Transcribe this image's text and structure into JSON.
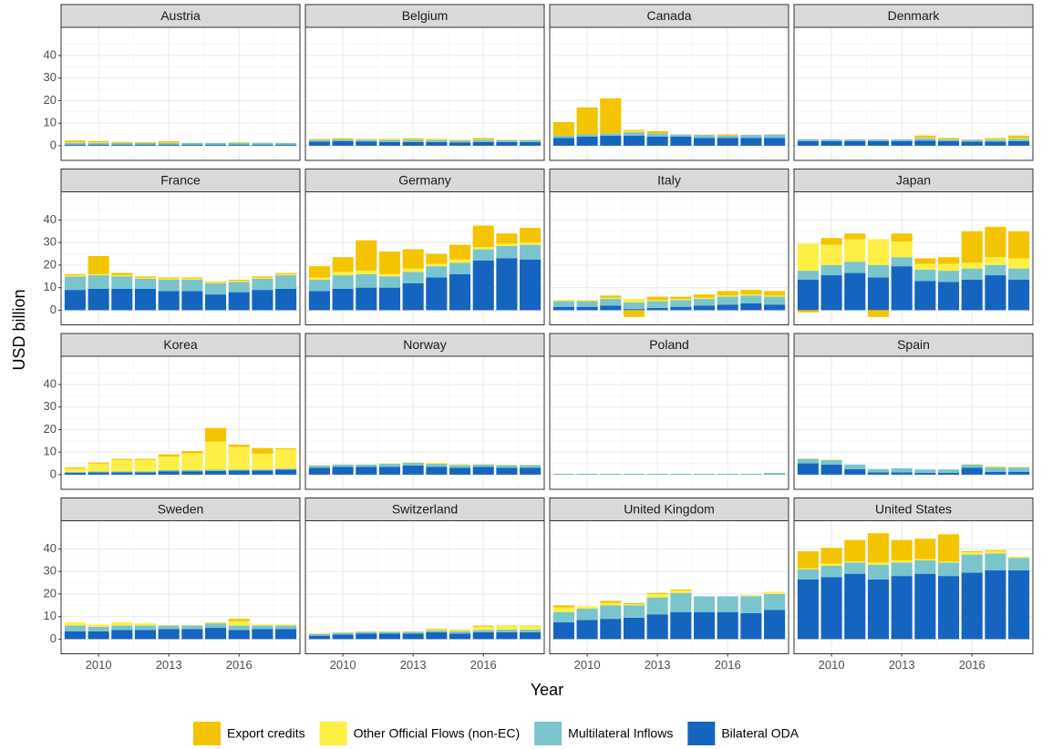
{
  "chart_data": {
    "type": "bar",
    "stacked": true,
    "x_label": "Year",
    "y_label": "USD billion",
    "x": [
      2009,
      2010,
      2011,
      2012,
      2013,
      2014,
      2015,
      2016,
      2017,
      2018
    ],
    "xlim": [
      2008.4,
      2018.6
    ],
    "xticks": [
      2010,
      2013,
      2016
    ],
    "xminor": [
      2008.5,
      2011.5,
      2014.5,
      2017.5
    ],
    "ylim": [
      -6.5,
      52.5
    ],
    "yticks": [
      0,
      10,
      20,
      30,
      40
    ],
    "yminor": [
      -5,
      5,
      15,
      25,
      35,
      45
    ],
    "grid": true,
    "legend": "bottom",
    "series": [
      {
        "name": "Export credits",
        "color": "#F5C400"
      },
      {
        "name": "Other Official Flows (non-EC)",
        "color": "#FFEE44"
      },
      {
        "name": "Multilateral Inflows",
        "color": "#7AC5CC"
      },
      {
        "name": "Bilateral ODA",
        "color": "#1565C0"
      }
    ],
    "panels": [
      {
        "title": "Austria",
        "values": [
          [
            0.8,
            0.6,
            0.4,
            0.3,
            0.6,
            0,
            0,
            0.2,
            0,
            0
          ],
          [
            0.2,
            0.2,
            0.1,
            0.1,
            0.2,
            0.1,
            0.1,
            0.1,
            0.1,
            0.1
          ],
          [
            0.8,
            0.8,
            0.7,
            0.7,
            0.7,
            0.7,
            0.7,
            0.8,
            0.8,
            0.7
          ],
          [
            0.5,
            0.5,
            0.5,
            0.5,
            0.5,
            0.5,
            0.5,
            0.5,
            0.5,
            0.5
          ]
        ]
      },
      {
        "title": "Belgium",
        "values": [
          [
            0.3,
            0.4,
            0.2,
            0.4,
            0.5,
            0.4,
            0.2,
            0.6,
            0.1,
            0.1
          ],
          [
            0.1,
            0.1,
            0.1,
            0.1,
            0.1,
            0.1,
            0.1,
            0.1,
            0.1,
            0.1
          ],
          [
            0.8,
            0.9,
            0.8,
            0.8,
            1,
            0.9,
            0.8,
            1,
            0.9,
            0.9
          ],
          [
            1.8,
            2,
            1.9,
            1.7,
            1.7,
            1.6,
            1.5,
            1.7,
            1.6,
            1.6
          ]
        ]
      },
      {
        "title": "Canada",
        "values": [
          [
            6,
            12,
            15.5,
            0.5,
            1,
            0,
            0,
            0.5,
            0,
            0
          ],
          [
            0,
            0,
            0,
            0.5,
            0,
            0,
            0.2,
            0,
            0,
            0
          ],
          [
            1,
            1,
            1,
            1.5,
            1.5,
            1,
            1.3,
            1,
            1.3,
            1.5
          ],
          [
            3.5,
            4,
            4.5,
            4.5,
            4,
            4,
            3.5,
            3.5,
            3.5,
            3.5
          ]
        ]
      },
      {
        "title": "Denmark",
        "values": [
          [
            0,
            0,
            0,
            0,
            0,
            1,
            0.5,
            0,
            0.5,
            1.2
          ],
          [
            0,
            0,
            0,
            0,
            0,
            0.3,
            0.2,
            0.2,
            0.2,
            0.3
          ],
          [
            0.9,
            0.8,
            0.8,
            0.8,
            0.8,
            1,
            0.8,
            0.8,
            0.9,
            1
          ],
          [
            2,
            2,
            2,
            2,
            2,
            2.2,
            2,
            1.8,
            1.8,
            2
          ]
        ]
      },
      {
        "title": "France",
        "values": [
          [
            0.5,
            8,
            1,
            0.5,
            0.5,
            0.5,
            0.3,
            0.5,
            0.5,
            0.5
          ],
          [
            0.5,
            0.5,
            0.5,
            0.5,
            0.5,
            0.5,
            0.5,
            0.5,
            0.5,
            0.5
          ],
          [
            6,
            6,
            5.5,
            4.5,
            5,
            5,
            5,
            4.5,
            5,
            6
          ],
          [
            9,
            9.5,
            9.5,
            9.5,
            8.5,
            8.5,
            7,
            8,
            9,
            9.5
          ]
        ]
      },
      {
        "title": "Germany",
        "values": [
          [
            5,
            6.5,
            13.5,
            10,
            8.5,
            4.5,
            6.5,
            9.5,
            4.5,
            6.5
          ],
          [
            1,
            1.5,
            1.5,
            1,
            1.5,
            1,
            1.5,
            1,
            1,
            1
          ],
          [
            5,
            6,
            6,
            5,
            5,
            5,
            5,
            5,
            5.5,
            6.5
          ],
          [
            8.5,
            9.5,
            10,
            10,
            12,
            14.5,
            16,
            22,
            23,
            22.5
          ]
        ]
      },
      {
        "title": "Italy",
        "values": [
          [
            0,
            0,
            1,
            -3,
            1.5,
            1,
            1.5,
            2,
            2,
            2
          ],
          [
            0.5,
            0.5,
            0.5,
            1.5,
            0.5,
            0.5,
            0.5,
            0.5,
            0.5,
            0.5
          ],
          [
            2.5,
            2.5,
            3,
            3,
            3,
            3,
            3,
            3.5,
            3.5,
            3.5
          ],
          [
            1.5,
            1.5,
            2,
            0.5,
            1,
            1.5,
            2,
            2.5,
            3,
            2.5
          ]
        ]
      },
      {
        "title": "Japan",
        "values": [
          [
            -1,
            3,
            2.5,
            -3,
            3.5,
            2.5,
            3,
            14,
            13.5,
            12
          ],
          [
            12,
            9,
            10,
            11.5,
            7,
            2.5,
            3,
            2.5,
            3.5,
            4.5
          ],
          [
            4,
            4.5,
            5,
            5.5,
            4,
            5,
            5,
            5,
            4.5,
            5
          ],
          [
            13.5,
            15.5,
            16.5,
            14.5,
            19.5,
            13,
            12.5,
            13.5,
            15.5,
            13.5
          ]
        ]
      },
      {
        "title": "Korea",
        "values": [
          [
            0.5,
            0.5,
            0.5,
            0.5,
            1,
            1,
            6,
            1,
            2.5,
            0.5
          ],
          [
            1.5,
            3.5,
            5,
            5,
            6,
            7.5,
            12.5,
            10,
            7,
            8.5
          ],
          [
            0.4,
            0.4,
            0.5,
            0.5,
            0.5,
            0.5,
            0.5,
            0.5,
            0.5,
            0.5
          ],
          [
            0.8,
            1,
            1,
            1,
            1.5,
            1.5,
            1.7,
            1.8,
            1.8,
            2.2
          ]
        ]
      },
      {
        "title": "Norway",
        "values": [
          [
            0,
            0,
            0,
            0,
            0,
            0,
            0,
            0,
            0,
            0
          ],
          [
            0.2,
            0.1,
            0.1,
            0.2,
            0.2,
            0.5,
            0.4,
            0.2,
            0.2,
            0.1
          ],
          [
            1,
            1,
            1,
            1.3,
            1.3,
            1.3,
            1.3,
            1,
            1.2,
            1.3
          ],
          [
            3,
            3.5,
            3.5,
            3.5,
            4,
            3.5,
            3,
            3.5,
            3,
            3
          ]
        ]
      },
      {
        "title": "Poland",
        "values": [
          [
            0,
            0,
            0,
            0,
            0,
            0,
            0,
            0,
            0,
            0
          ],
          [
            0,
            0,
            0,
            0,
            0,
            0,
            0,
            0,
            0,
            0
          ],
          [
            0.3,
            0.3,
            0.3,
            0.3,
            0.3,
            0.3,
            0.3,
            0.3,
            0.3,
            0.7
          ],
          [
            0.1,
            0.1,
            0.1,
            0.1,
            0.1,
            0.1,
            0.1,
            0.1,
            0.1,
            0.1
          ]
        ]
      },
      {
        "title": "Spain",
        "values": [
          [
            0,
            0,
            0,
            0,
            0,
            0,
            0,
            0,
            0,
            0
          ],
          [
            0.2,
            0.2,
            0,
            0,
            0,
            0,
            0,
            0.2,
            0.5,
            0.2
          ],
          [
            2,
            2,
            2,
            1.5,
            1.8,
            1.5,
            1.5,
            1.5,
            2,
            2
          ],
          [
            5,
            4.5,
            2.5,
            1,
            1,
            0.8,
            0.8,
            3,
            1.3,
            1.3
          ]
        ]
      },
      {
        "title": "Sweden",
        "values": [
          [
            0,
            0,
            0,
            0,
            0,
            0,
            0,
            1,
            0,
            0
          ],
          [
            1.5,
            1,
            1.5,
            1,
            0.2,
            0.2,
            0.5,
            2,
            0.5,
            0.5
          ],
          [
            2.5,
            2,
            2,
            2,
            1.5,
            1.5,
            2,
            2,
            1.5,
            1.5
          ],
          [
            3.5,
            3.5,
            4,
            4,
            4.5,
            4.5,
            5,
            4,
            4.5,
            4.5
          ]
        ]
      },
      {
        "title": "Switzerland",
        "values": [
          [
            0,
            0,
            0,
            0,
            0,
            0.3,
            0.2,
            0.5,
            0.3,
            0.3
          ],
          [
            0.3,
            0.3,
            0.2,
            0.2,
            0.2,
            0.5,
            0.5,
            1.5,
            1.5,
            1.5
          ],
          [
            0.8,
            0.8,
            0.8,
            0.8,
            0.8,
            0.8,
            1,
            1,
            1.2,
            1.2
          ],
          [
            1.5,
            2,
            2.5,
            2.5,
            2.5,
            3,
            2.5,
            3,
            3,
            3
          ]
        ]
      },
      {
        "title": "United Kingdom",
        "values": [
          [
            1,
            0,
            1,
            0.5,
            0.5,
            0.5,
            0,
            0,
            0,
            0
          ],
          [
            2,
            1,
            1,
            0.5,
            1.5,
            1,
            0,
            0,
            0.5,
            1
          ],
          [
            4.5,
            5,
            6,
            5.5,
            7.5,
            8.5,
            7,
            7,
            7.5,
            7
          ],
          [
            7.5,
            8.5,
            9,
            9.5,
            11,
            12,
            12,
            12,
            11.5,
            13
          ]
        ]
      },
      {
        "title": "United States",
        "values": [
          [
            7.5,
            7,
            9.5,
            13,
            9,
            9,
            12,
            0.5,
            0.5,
            0
          ],
          [
            0.5,
            1,
            0.5,
            1,
            1,
            0.5,
            0.5,
            1,
            1,
            0.5
          ],
          [
            4.5,
            5,
            5,
            6.5,
            6,
            6,
            6,
            8,
            7.5,
            5.5
          ],
          [
            26.5,
            27.5,
            29,
            26.5,
            28,
            29,
            28,
            29.5,
            30.5,
            30.5
          ]
        ]
      }
    ]
  }
}
